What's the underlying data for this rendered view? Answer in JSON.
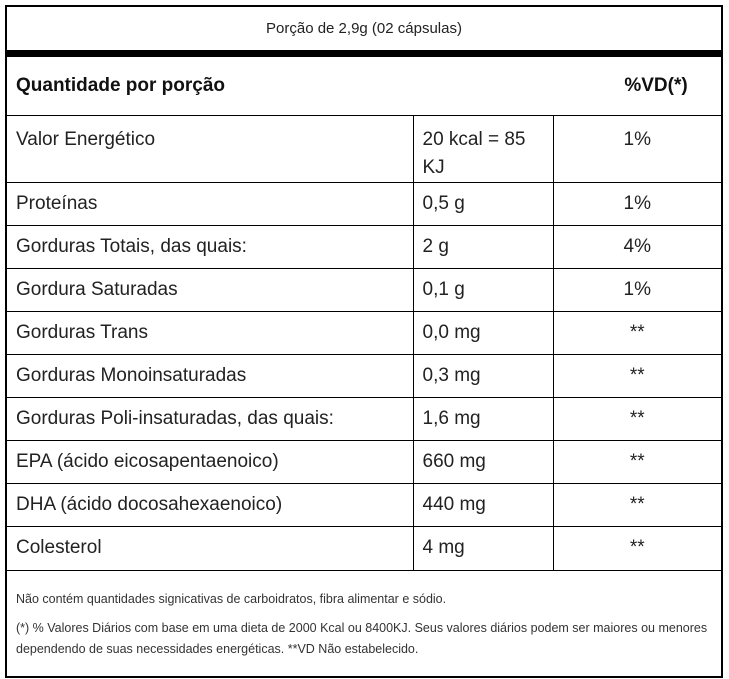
{
  "serving": "Porção de 2,9g (02 cápsulas)",
  "header": {
    "left": "Quantidade por porção",
    "right": "%VD(*)"
  },
  "rows": [
    {
      "name": "Valor Energético",
      "amount": "20 kcal = 85 KJ",
      "vd": "1%"
    },
    {
      "name": "Proteínas",
      "amount": "0,5 g",
      "vd": "1%"
    },
    {
      "name": "Gorduras Totais, das quais:",
      "amount": "2 g",
      "vd": "4%"
    },
    {
      "name": "Gordura Saturadas",
      "amount": "0,1 g",
      "vd": "1%"
    },
    {
      "name": "Gorduras Trans",
      "amount": "0,0 mg",
      "vd": "**"
    },
    {
      "name": "Gorduras Monoinsaturadas",
      "amount": "0,3 mg",
      "vd": "**"
    },
    {
      "name": "Gorduras Poli-insaturadas, das quais:",
      "amount": "1,6 mg",
      "vd": "**"
    },
    {
      "name": "EPA (ácido eicosapentaenoico)",
      "amount": "660 mg",
      "vd": "**"
    },
    {
      "name": "DHA (ácido docosahexaenoico)",
      "amount": "440 mg",
      "vd": "**"
    },
    {
      "name": "Colesterol",
      "amount": "4 mg",
      "vd": "**"
    }
  ],
  "footer": {
    "note1": "Não contém quantidades signicativas de carboidratos, fibra alimentar e sódio.",
    "note2": "(*) % Valores Diários com base em uma dieta de 2000 Kcal ou 8400KJ. Seus valores diários podem ser maiores ou menores dependendo de suas necessidades energéticas. **VD Não estabelecido."
  }
}
